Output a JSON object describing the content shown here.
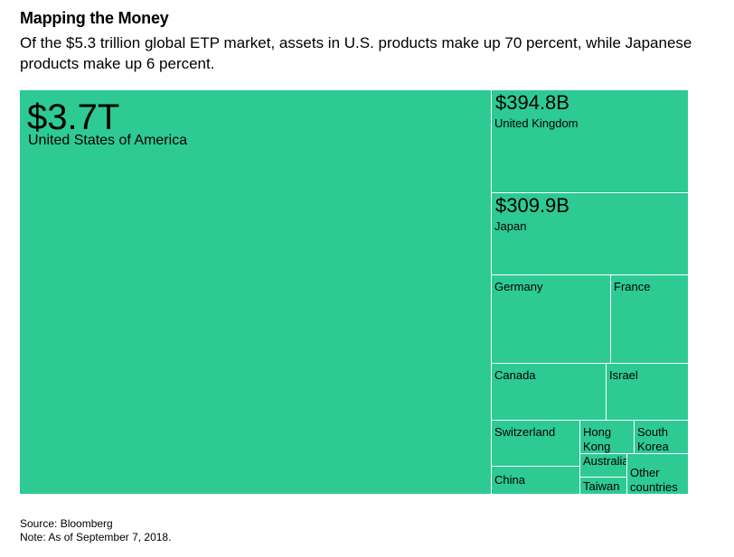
{
  "title": "Mapping the Money",
  "subtitle": "Of the $5.3 trillion global ETP market, assets in U.S. products make up 70 percent, while Japanese products make up 6 percent.",
  "colors": {
    "tile_fill": "#2dca94",
    "tile_border": "#ffffff",
    "text": "#000000"
  },
  "chart_data": {
    "type": "treemap",
    "title": "Mapping the Money",
    "total_label": "$5.3 trillion",
    "units": "USD",
    "items": [
      {
        "name": "United States of America",
        "label": "$3.7T",
        "value": 3700
      },
      {
        "name": "United Kingdom",
        "label": "$394.8B",
        "value": 394.8
      },
      {
        "name": "Japan",
        "label": "$309.9B",
        "value": 309.9
      },
      {
        "name": "Germany",
        "value": null
      },
      {
        "name": "France",
        "value": null
      },
      {
        "name": "Canada",
        "value": null
      },
      {
        "name": "Israel",
        "value": null
      },
      {
        "name": "Switzerland",
        "value": null
      },
      {
        "name": "Hong\nKong",
        "value": null
      },
      {
        "name": "South\nKorea",
        "value": null
      },
      {
        "name": "China",
        "value": null
      },
      {
        "name": "Australia",
        "value": null
      },
      {
        "name": "Taiwan",
        "value": null
      },
      {
        "name": "Other\ncountries",
        "value": null
      }
    ]
  },
  "footer": {
    "source": "Source: Bloomberg",
    "note": "Note: As of September 7, 2018."
  }
}
